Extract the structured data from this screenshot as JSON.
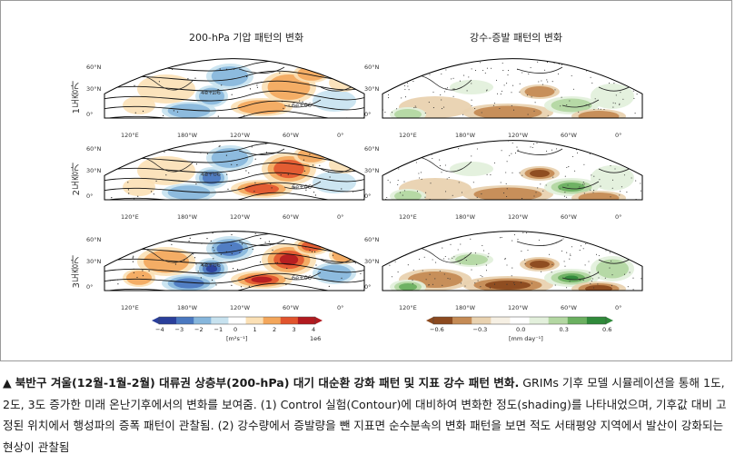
{
  "figure": {
    "left_title": "200-hPa 기압 패턴의 변화",
    "right_title": "강수-증발 패턴의 변화",
    "row_labels": [
      "1도증가",
      "2도증가",
      "3도증가"
    ],
    "lon_ticks": [
      "120°E",
      "180°W",
      "120°W",
      "60°W",
      "0°"
    ],
    "lat_ticks": [
      "60°N",
      "30°N",
      "0°"
    ],
    "left_colorbar": {
      "ticks": [
        "−4",
        "−3",
        "−2",
        "−1",
        "0",
        "1",
        "2",
        "3",
        "4"
      ],
      "units": "[m²s⁻¹]",
      "scale": "1e6",
      "colors": [
        "#2a3f9b",
        "#4a78c0",
        "#86b6dc",
        "#c7e2ef",
        "#ffffff",
        "#fbe0b5",
        "#f3a65b",
        "#e1542d",
        "#b21a1f"
      ]
    },
    "right_colorbar": {
      "ticks": [
        "−0.6",
        "−0.3",
        "0.0",
        "0.3",
        "0.6"
      ],
      "units": "[mm day⁻¹]",
      "colors": [
        "#8c4a1f",
        "#c58b55",
        "#e9d2b0",
        "#f6f0e4",
        "#ffffff",
        "#e3f0dc",
        "#b3d7a2",
        "#6bb060",
        "#2f8a3a"
      ]
    },
    "contour_labels": [
      "2e+06",
      "4e+06",
      "6e+06",
      "8e+06",
      "1e+07",
      "-2e+06",
      "0e+00"
    ]
  },
  "caption": {
    "marker": "▲",
    "headline": "북반구 겨울(12월-1월-2월) 대류권 상층부(200-hPa) 대기 대순환 강화 패턴 및 지표 강수 패턴 변화.",
    "body": " GRIMs 기후 모델 시뮬레이션을 통해 1도, 2도, 3도 증가한 미래 온난기후에서의 변화를 보여줌. (1) Control 실험(Contour)에 대비하여 변화한 정도(shading)를 나타내었으며, 기후값 대비 고정된 위치에서 행성파의 증폭 패턴이 관찰됨. (2) 강수량에서 증발량을 뺀 지표면 순수분속의 변화 패턴을 보면 적도 서태평양 지역에서 발산이 강화되는 현상이 관찰됨"
  }
}
